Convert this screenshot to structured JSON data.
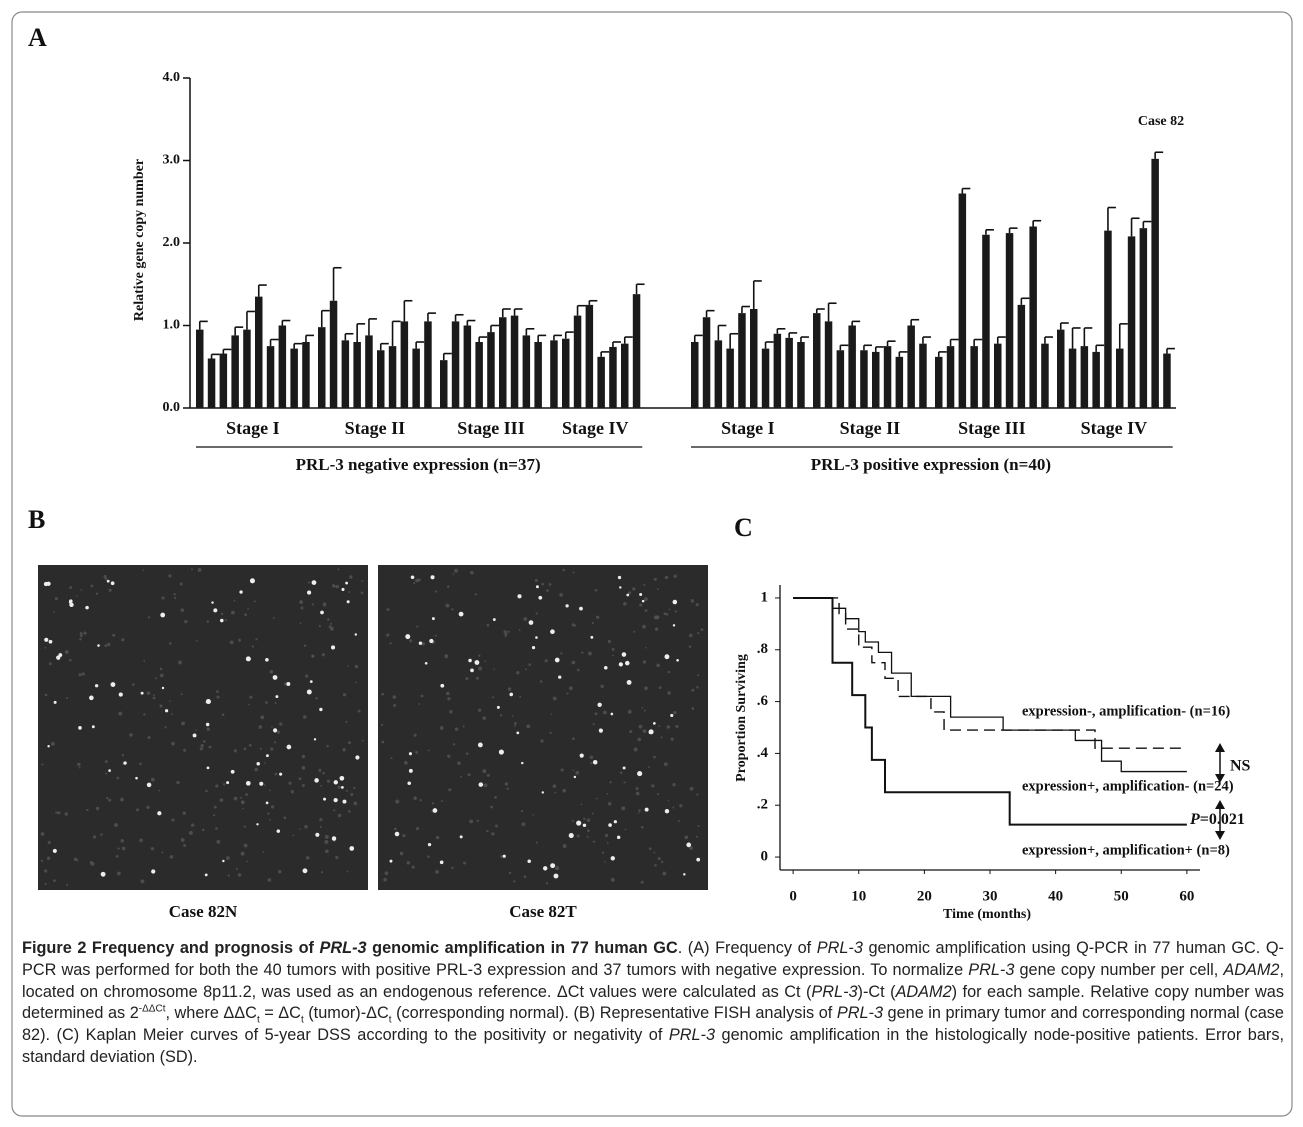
{
  "panels": {
    "a": "A",
    "b": "B",
    "c": "C"
  },
  "chart_data": [
    {
      "type": "bar",
      "y_label": "Relative gene copy number",
      "color": "#1a1a1a",
      "ylim": [
        0,
        4
      ],
      "yticks": [
        {
          "value": 0,
          "label": "0.0"
        },
        {
          "value": 1,
          "label": "1.0"
        },
        {
          "value": 2,
          "label": "2.0"
        },
        {
          "value": 3,
          "label": "3.0"
        },
        {
          "value": 4,
          "label": "4.0"
        }
      ],
      "annotation": "Case 82",
      "groups": [
        {
          "label": "PRL-3 negative expression (n=37)",
          "stages": [
            {
              "label": "Stage I",
              "values": [
                0.95,
                0.6,
                0.66,
                0.88,
                0.95,
                1.35,
                0.75,
                1.0,
                0.72,
                0.8
              ],
              "errors": [
                0.1,
                0.05,
                0.05,
                0.1,
                0.22,
                0.14,
                0.08,
                0.06,
                0.06,
                0.08
              ]
            },
            {
              "label": "Stage II",
              "values": [
                0.98,
                1.3,
                0.82,
                0.8,
                0.88,
                0.7,
                0.75,
                1.05,
                0.72,
                1.05
              ],
              "errors": [
                0.2,
                0.4,
                0.08,
                0.22,
                0.2,
                0.08,
                0.3,
                0.25,
                0.08,
                0.1
              ]
            },
            {
              "label": "Stage III",
              "values": [
                0.58,
                1.05,
                1.0,
                0.8,
                0.92,
                1.1,
                1.12,
                0.88,
                0.8
              ],
              "errors": [
                0.08,
                0.08,
                0.06,
                0.06,
                0.08,
                0.1,
                0.08,
                0.08,
                0.08
              ]
            },
            {
              "label": "Stage IV",
              "values": [
                0.82,
                0.84,
                1.12,
                1.25,
                0.62,
                0.74,
                0.78,
                1.38
              ],
              "errors": [
                0.06,
                0.08,
                0.12,
                0.05,
                0.06,
                0.06,
                0.08,
                0.12
              ]
            }
          ]
        },
        {
          "label": "PRL-3 positive expression (n=40)",
          "stages": [
            {
              "label": "Stage I",
              "values": [
                0.8,
                1.1,
                0.82,
                0.72,
                1.15,
                1.2,
                0.72,
                0.9,
                0.85,
                0.8
              ],
              "errors": [
                0.08,
                0.08,
                0.18,
                0.18,
                0.08,
                0.34,
                0.08,
                0.06,
                0.06,
                0.06
              ]
            },
            {
              "label": "Stage II",
              "values": [
                1.15,
                1.05,
                0.7,
                1.0,
                0.7,
                0.68,
                0.75,
                0.62,
                1.0,
                0.78
              ],
              "errors": [
                0.05,
                0.22,
                0.06,
                0.05,
                0.06,
                0.06,
                0.06,
                0.06,
                0.07,
                0.08
              ]
            },
            {
              "label": "Stage III",
              "values": [
                0.62,
                0.75,
                2.6,
                0.75,
                2.1,
                0.78,
                2.12,
                1.25,
                2.2,
                0.78
              ],
              "errors": [
                0.06,
                0.08,
                0.06,
                0.08,
                0.06,
                0.08,
                0.06,
                0.08,
                0.07,
                0.08
              ]
            },
            {
              "label": "Stage IV",
              "values": [
                0.95,
                0.72,
                0.75,
                0.68,
                2.15,
                0.72,
                2.08,
                2.18,
                3.02,
                0.66
              ],
              "errors": [
                0.08,
                0.25,
                0.22,
                0.08,
                0.28,
                0.3,
                0.22,
                0.08,
                0.08,
                0.06
              ]
            }
          ]
        }
      ]
    },
    {
      "type": "line",
      "step": true,
      "y_label": "Proportion Surviving",
      "x_label": "Time (months)",
      "xlim": [
        -2,
        62
      ],
      "ylim": [
        -0.05,
        1.05
      ],
      "xticks": [
        0,
        10,
        20,
        30,
        40,
        50,
        60
      ],
      "yticks": [
        0,
        {
          "value": 0.2,
          "label": ".2"
        },
        {
          "value": 0.4,
          "label": ".4"
        },
        {
          "value": 0.6,
          "label": ".6"
        },
        {
          "value": 0.8,
          "label": ".8"
        },
        1
      ],
      "annotations": {
        "ns": "NS",
        "p_symbol": "P",
        "p_value": "=0.021"
      },
      "series": [
        {
          "name": "expression-, amplification- (n=16)",
          "color": "#111111",
          "dash": true,
          "x": [
            0,
            7,
            8,
            10,
            12,
            14,
            16,
            21,
            23,
            46,
            60
          ],
          "y": [
            1,
            0.94,
            0.88,
            0.81,
            0.75,
            0.69,
            0.62,
            0.56,
            0.49,
            0.42,
            0.42
          ]
        },
        {
          "name": "expression+, amplification- (n=24)",
          "color": "#111111",
          "dash": false,
          "x": [
            0,
            6,
            8,
            10,
            11,
            13,
            15,
            18,
            24,
            32,
            43,
            47,
            50,
            60
          ],
          "y": [
            1,
            0.96,
            0.92,
            0.87,
            0.83,
            0.79,
            0.71,
            0.62,
            0.54,
            0.49,
            0.45,
            0.37,
            0.33,
            0.33
          ]
        },
        {
          "name": "expression+, amplification+ (n=8)",
          "color": "#111111",
          "dash": false,
          "x": [
            0,
            6,
            9,
            11,
            12,
            14,
            33,
            60
          ],
          "y": [
            1,
            0.75,
            0.625,
            0.5,
            0.375,
            0.25,
            0.125,
            0.125
          ]
        }
      ]
    }
  ],
  "images": {
    "labels": [
      "Case 82N",
      "Case 82T"
    ]
  },
  "caption": [
    "Figure 2 Frequency and prognosis of ",
    "PRL-3",
    " genomic amplification in 77 human GC",
    ". (A) Frequency of ",
    "PRL-3",
    " genomic amplification using Q-PCR in 77 human GC. Q-PCR was performed for both the 40 tumors with positive PRL-3 expression and 37 tumors with negative expression. To normalize ",
    "PRL-3",
    " gene copy number per cell, ",
    "ADAM2",
    ", located on chromosome 8p11.2, was used as an endogenous reference. ΔCt values were calculated as Ct (",
    "PRL-3",
    ")-Ct (",
    "ADAM2",
    ") for each sample. Relative copy number was determined as 2",
    "-ΔΔCt",
    ", where ΔΔC",
    "t",
    " = ΔC",
    "t",
    " (tumor)-ΔC",
    "t",
    " (corresponding normal). (B) Representative FISH analysis of ",
    "PRL-3",
    " gene in primary tumor and corresponding normal (case 82). (C) Kaplan Meier curves of 5-year DSS according to the positivity or negativity of ",
    "PRL-3",
    " genomic amplification in the histologically node-positive patients. Error bars, standard deviation (SD)."
  ]
}
